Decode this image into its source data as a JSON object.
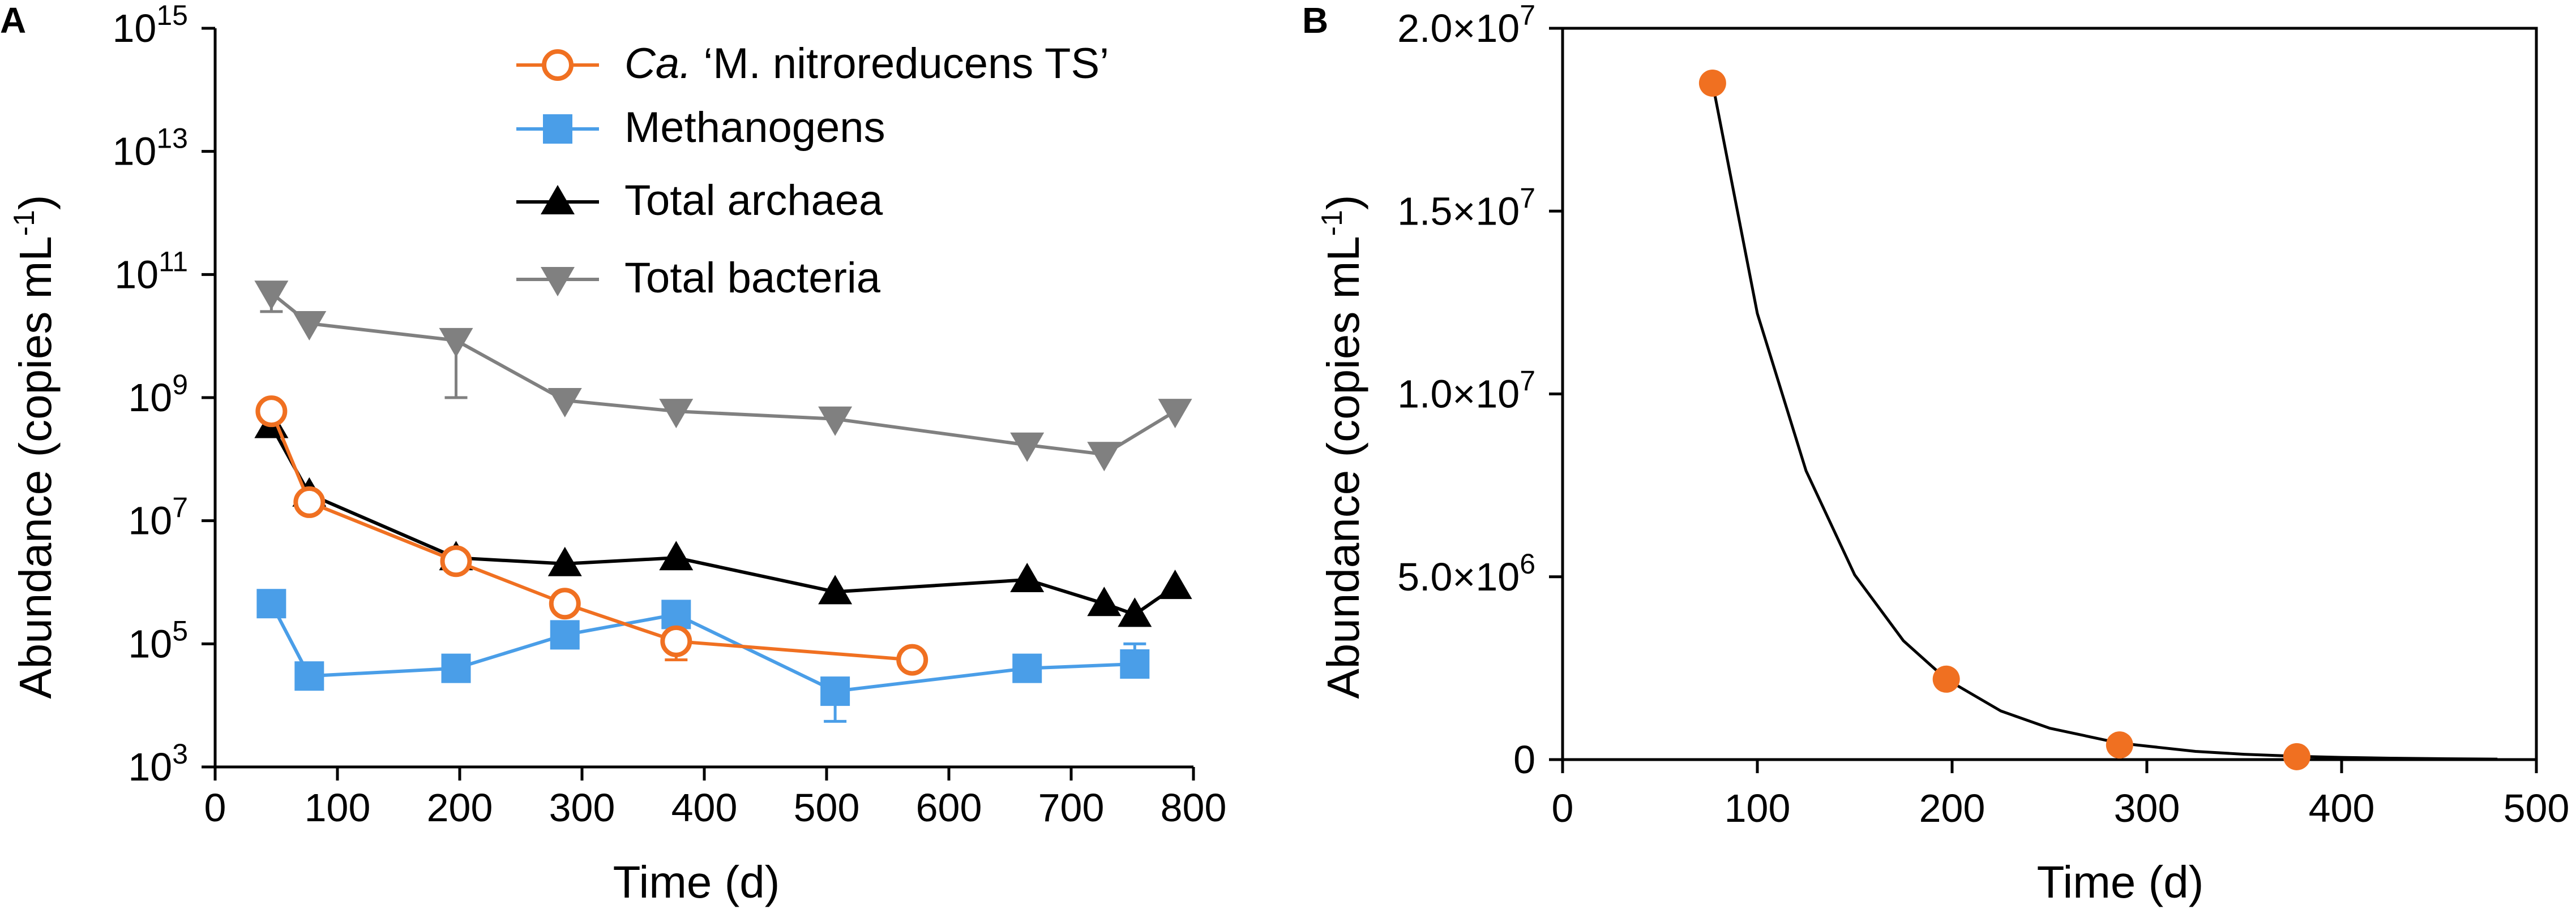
{
  "chart_data": [
    {
      "panel": "A",
      "type": "line",
      "title": "",
      "xlabel": "Time (d)",
      "ylabel": "Abundance (copies mL",
      "ylabel_sup": "-1",
      "ylabel_close": ")",
      "y_scale": "log",
      "xlim": [
        0,
        800
      ],
      "ylim": [
        1000,
        1000000000000000
      ],
      "x_ticks": [
        0,
        100,
        200,
        300,
        400,
        500,
        600,
        700,
        800
      ],
      "y_ticks": [
        {
          "value": 1000,
          "base": "10",
          "exp": "3"
        },
        {
          "value": 100000,
          "base": "10",
          "exp": "5"
        },
        {
          "value": 10000000,
          "base": "10",
          "exp": "7"
        },
        {
          "value": 1000000000,
          "base": "10",
          "exp": "9"
        },
        {
          "value": 100000000000,
          "base": "10",
          "exp": "11"
        },
        {
          "value": 10000000000000,
          "base": "10",
          "exp": "13"
        },
        {
          "value": 1000000000000000,
          "base": "10",
          "exp": "15"
        }
      ],
      "legend_position": "top-right",
      "series": [
        {
          "name_italic": "Ca.",
          "name_rest": " ‘M. nitroreducens TS’",
          "color": "#f07021",
          "marker": "circle-open",
          "x": [
            46,
            77,
            197,
            286,
            377,
            570
          ],
          "y": [
            600000000,
            20000000,
            2200000,
            450000,
            110000,
            55000
          ],
          "err_minus": [
            null,
            null,
            null,
            null,
            55000,
            null
          ]
        },
        {
          "name": "Methanogens",
          "color": "#4a9ee8",
          "marker": "square",
          "x": [
            46,
            77,
            197,
            286,
            377,
            507,
            664,
            752
          ],
          "y": [
            450000,
            30000,
            40000,
            140000,
            300000,
            17000,
            40000,
            47000
          ],
          "err_minus": [
            null,
            null,
            null,
            null,
            null,
            5500,
            null,
            null
          ],
          "err_plus": [
            null,
            null,
            null,
            null,
            null,
            null,
            null,
            100000
          ]
        },
        {
          "name": "Total archaea",
          "color": "#000000",
          "marker": "triangle-up",
          "x": [
            46,
            77,
            197,
            286,
            377,
            507,
            664,
            727,
            752,
            785
          ],
          "y": [
            350000000,
            27000000,
            2500000,
            2000000,
            2500000,
            700000,
            1100000,
            450000,
            300000,
            850000
          ],
          "err_minus": [
            null,
            null,
            null,
            null,
            null,
            null,
            null,
            null,
            200000,
            null
          ]
        },
        {
          "name": "Total bacteria",
          "color": "#808080",
          "marker": "triangle-down",
          "x": [
            46,
            77,
            197,
            286,
            377,
            507,
            664,
            727,
            785
          ],
          "y": [
            50000000000,
            16000000000,
            8500000000,
            900000000,
            600000000,
            450000000,
            170000000,
            120000000,
            600000000
          ],
          "err_minus": [
            25000000000,
            null,
            1000000000,
            null,
            null,
            null,
            null,
            null,
            null
          ]
        }
      ]
    },
    {
      "panel": "B",
      "type": "scatter",
      "title": "",
      "xlabel": "Time (d)",
      "ylabel": "Abundance (copies mL",
      "ylabel_sup": "-1",
      "ylabel_close": ")",
      "xlim": [
        0,
        500
      ],
      "ylim": [
        0,
        20000000
      ],
      "x_ticks": [
        0,
        100,
        200,
        300,
        400,
        500
      ],
      "y_ticks": [
        {
          "value": 0,
          "label": "0",
          "exp": ""
        },
        {
          "value": 5000000,
          "label": "5.0×10",
          "exp": "6"
        },
        {
          "value": 10000000,
          "label": "1.0×10",
          "exp": "7"
        },
        {
          "value": 15000000,
          "label": "1.5×10",
          "exp": "7"
        },
        {
          "value": 20000000,
          "label": "2.0×10",
          "exp": "7"
        }
      ],
      "series": [
        {
          "name": "Ca. ‘M. nitroreducens TS’",
          "color": "#f07021",
          "x": [
            77,
            197,
            286,
            377
          ],
          "y": [
            18500000,
            2200000,
            400000,
            80000
          ]
        }
      ],
      "fit_curve": {
        "type": "exponential_decay",
        "color": "#000000",
        "x_range": [
          77,
          480
        ],
        "points": [
          [
            77,
            18500000
          ],
          [
            100,
            12200000
          ],
          [
            125,
            7900000
          ],
          [
            150,
            5050000
          ],
          [
            175,
            3250000
          ],
          [
            197,
            2200000
          ],
          [
            225,
            1330000
          ],
          [
            250,
            860000
          ],
          [
            286,
            450000
          ],
          [
            325,
            225000
          ],
          [
            350,
            145000
          ],
          [
            377,
            90000
          ],
          [
            400,
            60000
          ],
          [
            425,
            38000
          ],
          [
            450,
            25000
          ],
          [
            480,
            14000
          ]
        ]
      }
    }
  ],
  "panel_labels": {
    "a": "A",
    "b": "B"
  }
}
